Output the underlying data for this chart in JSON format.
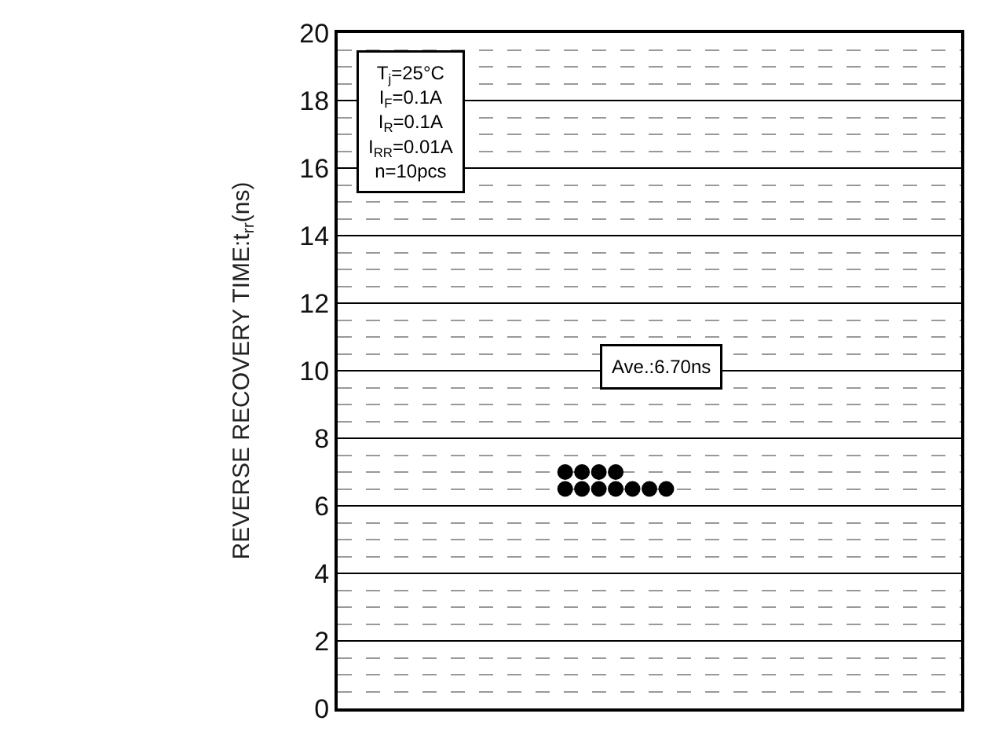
{
  "chart_data": {
    "type": "scatter",
    "ylabel": "REVERSE RECOVERY TIME:t$_{rr}$(ns)",
    "categories": [
      null,
      null,
      null,
      null,
      null,
      null,
      null,
      null,
      null,
      null,
      null,
      null,
      null,
      null,
      null,
      null,
      null,
      null,
      null,
      null,
      null,
      null,
      null,
      null,
      null,
      null,
      null,
      null,
      null,
      null,
      null,
      null,
      null,
      null,
      null,
      null,
      null
    ],
    "series": [
      {
        "color": "#000000",
        "values": [
          null,
          null,
          null,
          null,
          null,
          null,
          null,
          null,
          null,
          null,
          null,
          null,
          null,
          7,
          7,
          7,
          7,
          null,
          null,
          null,
          null,
          null,
          null,
          null,
          null,
          null,
          null,
          null,
          null,
          null,
          null,
          null,
          null,
          null,
          null,
          null,
          null
        ]
      },
      {
        "color": "#000000",
        "values": [
          null,
          null,
          null,
          null,
          null,
          null,
          null,
          null,
          null,
          null,
          null,
          null,
          null,
          6.5,
          6.5,
          6.5,
          6.5,
          6.5,
          6.5,
          6.5,
          null,
          null,
          null,
          null,
          null,
          null,
          null,
          null,
          null,
          null,
          null,
          null,
          null,
          null,
          null,
          null,
          null
        ]
      }
    ],
    "ylim": [
      0,
      20
    ],
    "yticks": [
      0,
      2,
      4,
      6,
      8,
      10,
      12,
      14,
      16,
      18,
      20
    ],
    "grid": "y",
    "marker": "circle",
    "tick_labels": "y",
    "annotations": [
      "T$_{j}$=25°C\nI$_{F}$=0.1A\nI$_{R}$=0.1A\nI$_{RR}$=0.01A\nn=10pcs",
      "Ave.:6.70ns"
    ]
  }
}
